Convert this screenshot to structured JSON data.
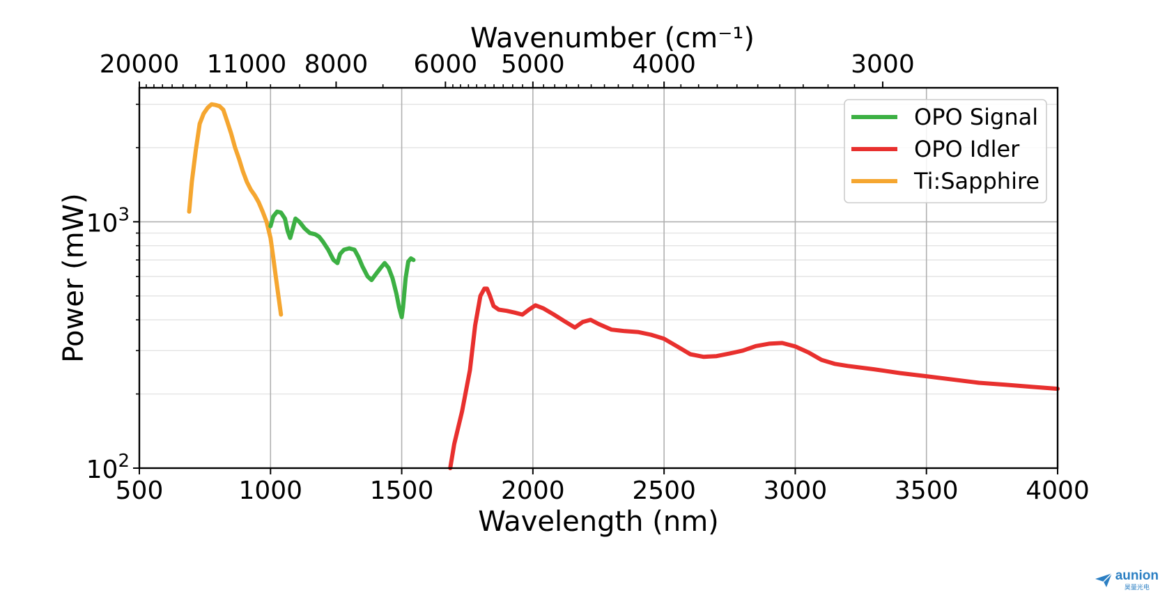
{
  "chart_data": {
    "type": "line",
    "xlabel": "Wavelength (nm)",
    "ylabel": "Power (mW)",
    "top_xlabel": "Wavenumber (cm⁻¹)",
    "y_scale": "log",
    "xlim": [
      500,
      4000
    ],
    "ylim": [
      100,
      3500
    ],
    "grid": true,
    "legend_position": "upper right",
    "x_ticks": [
      "500",
      "1000",
      "1500",
      "2000",
      "2500",
      "3000",
      "3500",
      "4000"
    ],
    "y_ticks": [
      {
        "value": 100,
        "label": "10",
        "exp": "2"
      },
      {
        "value": 1000,
        "label": "10",
        "exp": "3"
      }
    ],
    "top_ticks": [
      "20000",
      "11000",
      "8000",
      "6000",
      "5000",
      "4000",
      "3000"
    ],
    "series": [
      {
        "name": "OPO Signal",
        "color": "#3cb043",
        "x": [
          1000,
          1010,
          1025,
          1040,
          1055,
          1065,
          1075,
          1085,
          1095,
          1110,
          1130,
          1150,
          1170,
          1185,
          1200,
          1220,
          1240,
          1255,
          1265,
          1280,
          1300,
          1320,
          1335,
          1350,
          1370,
          1385,
          1400,
          1420,
          1435,
          1450,
          1465,
          1480,
          1490,
          1500,
          1505,
          1515,
          1525,
          1535,
          1545
        ],
        "y": [
          960,
          1050,
          1100,
          1090,
          1030,
          920,
          860,
          940,
          1030,
          1000,
          940,
          900,
          890,
          870,
          830,
          770,
          700,
          680,
          740,
          770,
          780,
          770,
          720,
          660,
          600,
          580,
          610,
          650,
          680,
          650,
          590,
          510,
          450,
          410,
          450,
          590,
          690,
          710,
          700
        ]
      },
      {
        "name": "OPO Idler",
        "color": "#e8302e",
        "x": [
          1685,
          1700,
          1730,
          1760,
          1780,
          1800,
          1815,
          1825,
          1835,
          1850,
          1870,
          1900,
          1930,
          1960,
          1985,
          2010,
          2040,
          2080,
          2120,
          2160,
          2190,
          2220,
          2250,
          2300,
          2350,
          2400,
          2450,
          2500,
          2550,
          2600,
          2650,
          2700,
          2750,
          2800,
          2850,
          2900,
          2950,
          3000,
          3050,
          3100,
          3150,
          3200,
          3300,
          3400,
          3500,
          3600,
          3700,
          3800,
          3900,
          4000
        ],
        "y": [
          100,
          125,
          170,
          250,
          380,
          500,
          535,
          535,
          505,
          455,
          440,
          435,
          428,
          420,
          440,
          458,
          445,
          420,
          395,
          372,
          392,
          400,
          385,
          365,
          360,
          357,
          348,
          335,
          312,
          290,
          283,
          285,
          292,
          300,
          313,
          320,
          322,
          312,
          295,
          275,
          265,
          260,
          252,
          243,
          236,
          229,
          222,
          218,
          214,
          210
        ]
      },
      {
        "name": "Ti:Sapphire",
        "color": "#f5a630",
        "x": [
          690,
          700,
          715,
          730,
          745,
          760,
          775,
          790,
          805,
          820,
          835,
          850,
          865,
          880,
          895,
          910,
          925,
          940,
          955,
          970,
          985,
          1000,
          1010,
          1020,
          1030,
          1040
        ],
        "y": [
          1100,
          1450,
          1950,
          2500,
          2750,
          2900,
          3000,
          2980,
          2950,
          2850,
          2550,
          2280,
          2000,
          1800,
          1600,
          1450,
          1350,
          1280,
          1200,
          1100,
          1000,
          860,
          720,
          600,
          500,
          420
        ]
      }
    ]
  },
  "watermark": {
    "brand": "aunion",
    "subtitle": "昊量光电"
  }
}
